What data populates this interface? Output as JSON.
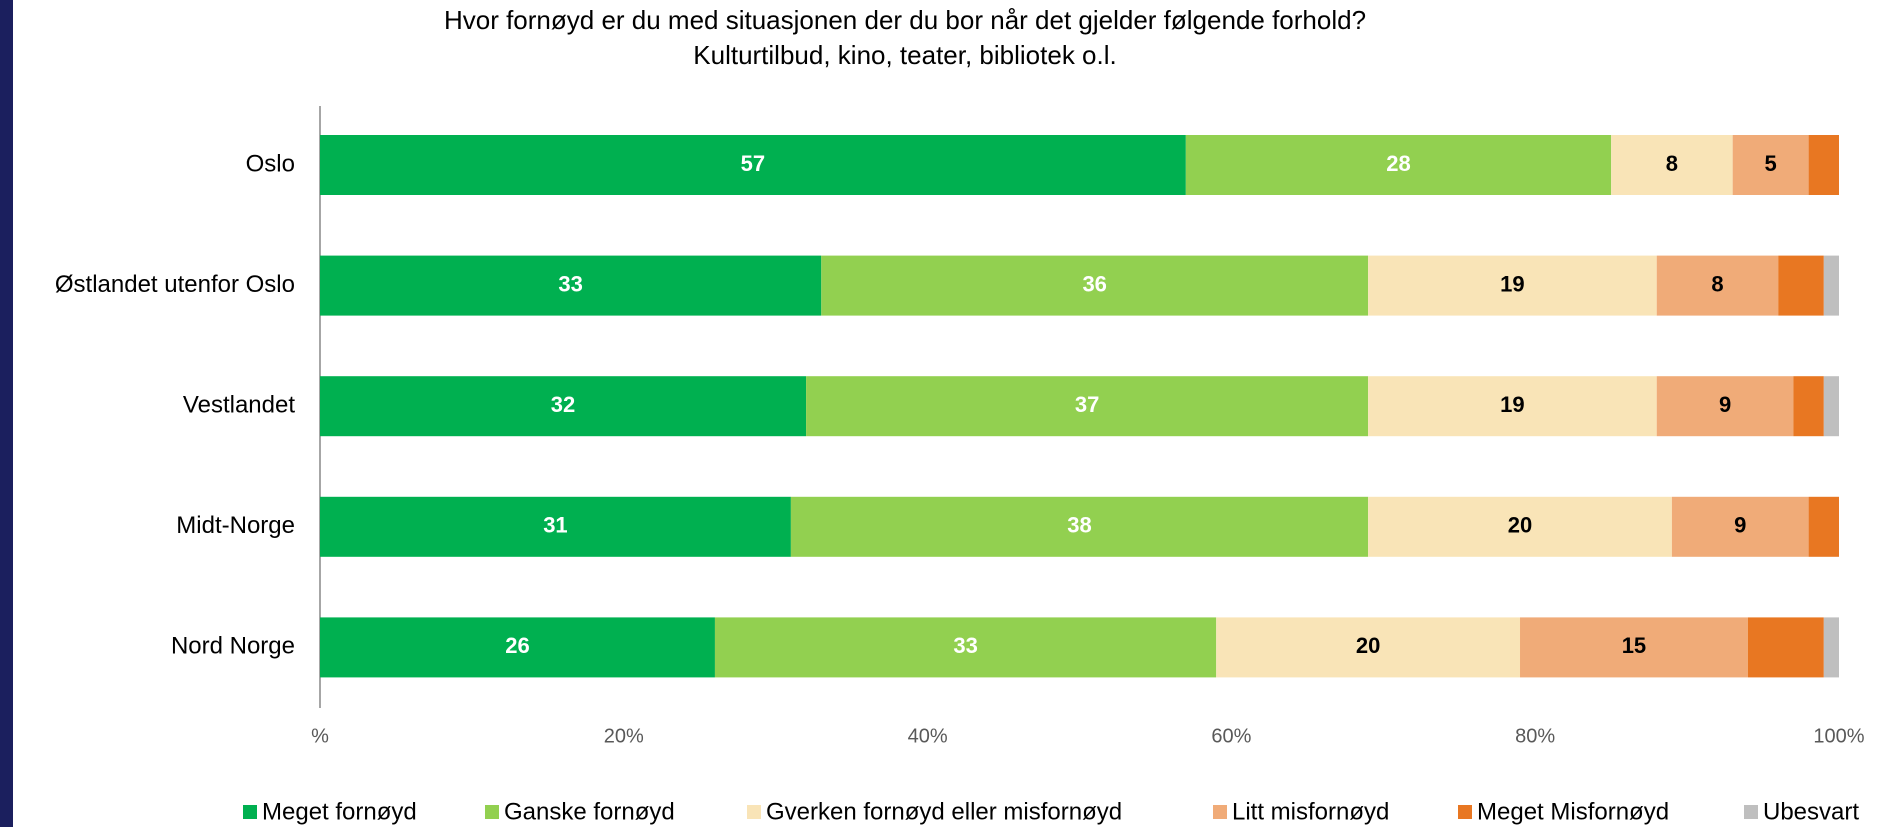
{
  "chart_data": {
    "type": "stacked_barh",
    "title": "Hvor fornøyd er du med situasjonen der du bor når det gjelder følgende forhold?",
    "subtitle": "Kulturtilbud, kino, teater, bibliotek o.l.",
    "categories": [
      "Oslo",
      "Østlandet utenfor Oslo",
      "Vestlandet",
      "Midt-Norge",
      "Nord Norge"
    ],
    "series": [
      {
        "name": "Meget fornøyd",
        "color": "#00b050",
        "values": [
          57,
          33,
          32,
          31,
          26
        ],
        "value_labels": [
          "57",
          "33",
          "32",
          "31",
          "26"
        ]
      },
      {
        "name": "Ganske fornøyd",
        "color": "#92d050",
        "values": [
          28,
          36,
          37,
          38,
          33
        ],
        "value_labels": [
          "28",
          "36",
          "37",
          "38",
          "33"
        ]
      },
      {
        "name": "Gverken fornøyd eller misfornøyd",
        "color": "#f9e4b7",
        "values": [
          8,
          19,
          19,
          20,
          20
        ],
        "value_labels": [
          "8",
          "19",
          "19",
          "20",
          "20"
        ]
      },
      {
        "name": "Litt misfornøyd",
        "color": "#f0ab78",
        "values": [
          5,
          8,
          9,
          9,
          15
        ],
        "value_labels": [
          "5",
          "8",
          "9",
          "9",
          "15"
        ]
      },
      {
        "name": "Meget Misfornøyd",
        "color": "#e87722",
        "values": [
          2,
          3,
          2,
          2,
          5
        ]
      },
      {
        "name": "Ubesvart",
        "color": "#bfbfbf",
        "values": [
          0,
          1,
          1,
          0,
          1
        ]
      }
    ],
    "xlim": [
      0,
      100
    ],
    "xticks": [
      {
        "value": 0,
        "label": "%"
      },
      {
        "value": 20,
        "label": "20%"
      },
      {
        "value": 40,
        "label": "40%"
      },
      {
        "value": 60,
        "label": "60%"
      },
      {
        "value": 80,
        "label": "80%"
      },
      {
        "value": 100,
        "label": "100%"
      }
    ]
  }
}
